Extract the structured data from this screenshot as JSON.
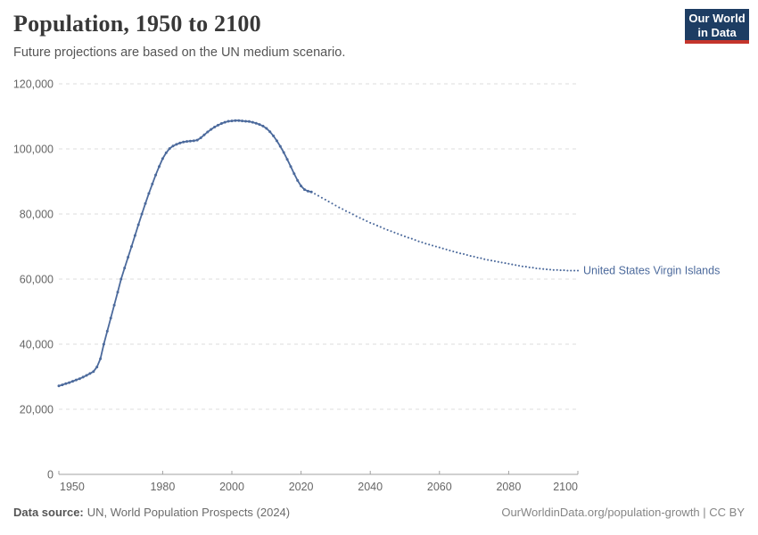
{
  "header": {
    "title": "Population, 1950 to 2100",
    "subtitle": "Future projections are based on the UN medium scenario.",
    "logo": {
      "line1": "Our World",
      "line2": "in Data",
      "bg_color": "#1d3d63",
      "accent_color": "#c4352c"
    }
  },
  "footer": {
    "source_label": "Data source:",
    "source_text": "UN, World Population Prospects (2024)",
    "link_text": "OurWorldinData.org/population-growth | CC BY"
  },
  "chart_data": {
    "type": "line",
    "title": "Population, 1950 to 2100",
    "entity": "United States Virgin Islands",
    "series_color": "#4c6a9c",
    "grid_color": "#dcdcdc",
    "axis_color": "#a1a1a1",
    "tick_label_color": "#666666",
    "grid": true,
    "legend_position": "end-of-line-label",
    "xlim": [
      1950,
      2100
    ],
    "ylim": [
      0,
      120000
    ],
    "x_ticks": [
      1950,
      1980,
      2000,
      2020,
      2040,
      2060,
      2080,
      2100
    ],
    "x_tick_labels": [
      "1950",
      "1980",
      "2000",
      "2020",
      "2040",
      "2060",
      "2080",
      "2100"
    ],
    "y_ticks": [
      0,
      20000,
      40000,
      60000,
      80000,
      100000,
      120000
    ],
    "y_tick_labels": [
      "0",
      "20,000",
      "40,000",
      "60,000",
      "80,000",
      "100,000",
      "120,000"
    ],
    "series": [
      {
        "name": "United States Virgin Islands (estimates)",
        "style": "solid",
        "start_year": 1950,
        "values": [
          27200,
          27500,
          27900,
          28200,
          28600,
          29000,
          29400,
          29900,
          30400,
          31000,
          31600,
          33000,
          35500,
          40000,
          44000,
          48000,
          52000,
          56000,
          60000,
          63400,
          66700,
          70000,
          73400,
          76700,
          80000,
          83200,
          86300,
          89200,
          92000,
          94600,
          97000,
          98800,
          100100,
          100900,
          101400,
          101800,
          102100,
          102300,
          102400,
          102500,
          102700,
          103400,
          104300,
          105200,
          106000,
          106700,
          107300,
          107800,
          108200,
          108500,
          108600,
          108700,
          108700,
          108600,
          108500,
          108400,
          108200,
          107900,
          107500,
          107000,
          106300,
          105300,
          104000,
          102500,
          100800,
          98900,
          96800,
          94600,
          92400,
          90300,
          88600,
          87500,
          87000,
          86800
        ]
      },
      {
        "name": "United States Virgin Islands (UN medium projection)",
        "style": "dotted",
        "start_year": 2024,
        "values": [
          86200,
          85600,
          85000,
          84400,
          83800,
          83200,
          82600,
          82000,
          81500,
          80900,
          80400,
          79900,
          79300,
          78800,
          78300,
          77800,
          77300,
          76900,
          76400,
          76000,
          75500,
          75100,
          74700,
          74300,
          73900,
          73500,
          73100,
          72700,
          72400,
          72000,
          71600,
          71300,
          70900,
          70600,
          70300,
          70000,
          69700,
          69400,
          69100,
          68800,
          68500,
          68200,
          67900,
          67700,
          67400,
          67100,
          66900,
          66600,
          66400,
          66100,
          65900,
          65700,
          65500,
          65300,
          65100,
          64900,
          64700,
          64500,
          64300,
          64100,
          63900,
          63800,
          63600,
          63500,
          63300,
          63200,
          63100,
          63000,
          62900,
          62800,
          62800,
          62700,
          62700,
          62600,
          62600,
          62600,
          62600
        ]
      }
    ]
  }
}
